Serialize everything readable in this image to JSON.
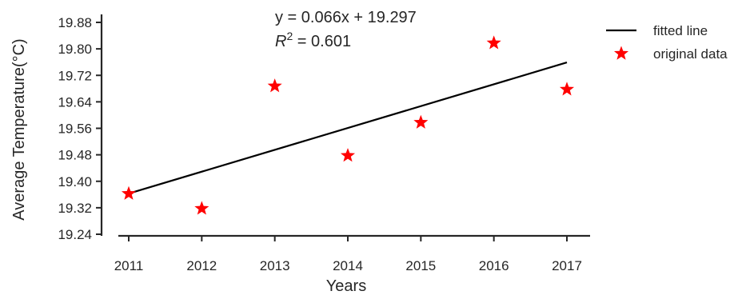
{
  "chart_data": {
    "type": "scatter",
    "title": "",
    "xlabel": "Years",
    "ylabel": "Average Temperature(°C)",
    "x": [
      2011,
      2012,
      2013,
      2014,
      2015,
      2016,
      2017
    ],
    "x_tick_labels": [
      "2011",
      "2012",
      "2013",
      "2014",
      "2015",
      "2016",
      "2017"
    ],
    "y_ticks": [
      19.24,
      19.32,
      19.4,
      19.48,
      19.56,
      19.64,
      19.72,
      19.8,
      19.88
    ],
    "y_tick_labels": [
      "19.24",
      "19.32",
      "19.40",
      "19.48",
      "19.56",
      "19.64",
      "19.72",
      "19.80",
      "19.88"
    ],
    "ylim": [
      19.24,
      19.88
    ],
    "xlim": [
      2011,
      2017
    ],
    "grid": false,
    "legend_position": "outside-top-right",
    "series": [
      {
        "name": "fitted line",
        "kind": "line",
        "color": "#000000",
        "x": [
          2011,
          2017
        ],
        "y": [
          19.363,
          19.759
        ]
      },
      {
        "name": "original data",
        "kind": "scatter",
        "marker": "star",
        "color": "#ff0000",
        "x": [
          2011,
          2012,
          2013,
          2014,
          2015,
          2016,
          2017
        ],
        "y": [
          19.365,
          19.32,
          19.69,
          19.48,
          19.58,
          19.82,
          19.68
        ]
      }
    ],
    "annotations": {
      "equation": "y = 0.066x + 19.297",
      "r2_prefix": "R",
      "r2_sup": "2",
      "r2_suffix": " = 0.601"
    }
  }
}
